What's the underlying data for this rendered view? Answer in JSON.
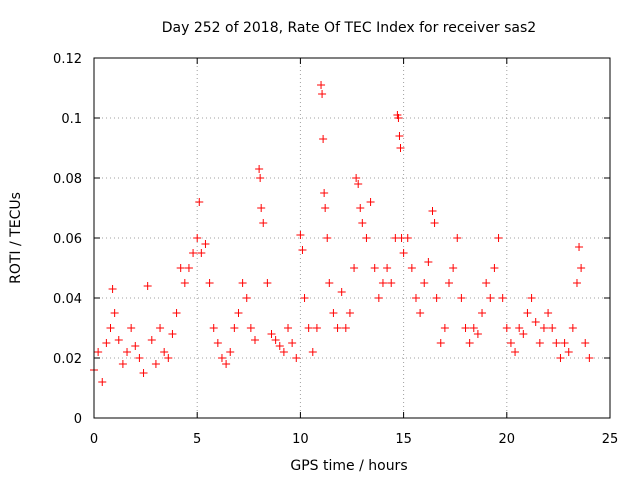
{
  "chart_data": {
    "type": "scatter",
    "title": "Day 252 of 2018, Rate Of TEC Index for receiver sas2",
    "xlabel": "GPS time / hours",
    "ylabel": "ROTI / TECUs",
    "xlim": [
      0,
      25
    ],
    "ylim": [
      0,
      0.12
    ],
    "xticks": [
      0,
      5,
      10,
      15,
      20,
      25
    ],
    "xtick_labels": [
      "0",
      "5",
      "10",
      "15",
      "20",
      "25"
    ],
    "yticks": [
      0,
      0.02,
      0.04,
      0.06,
      0.08,
      0.1,
      0.12
    ],
    "ytick_labels": [
      "0",
      "0.02",
      "0.04",
      "0.06",
      "0.08",
      "0.1",
      "0.12"
    ],
    "grid": true,
    "marker": "plus",
    "color": "#ff0000",
    "series": [
      {
        "points": [
          [
            0.0,
            0.016
          ],
          [
            0.2,
            0.022
          ],
          [
            0.4,
            0.012
          ],
          [
            0.6,
            0.025
          ],
          [
            0.8,
            0.03
          ],
          [
            0.9,
            0.043
          ],
          [
            1.0,
            0.035
          ],
          [
            1.2,
            0.026
          ],
          [
            1.4,
            0.018
          ],
          [
            1.6,
            0.022
          ],
          [
            1.8,
            0.03
          ],
          [
            2.0,
            0.024
          ],
          [
            2.2,
            0.02
          ],
          [
            2.4,
            0.015
          ],
          [
            2.6,
            0.044
          ],
          [
            2.8,
            0.026
          ],
          [
            3.0,
            0.018
          ],
          [
            3.2,
            0.03
          ],
          [
            3.4,
            0.022
          ],
          [
            3.6,
            0.02
          ],
          [
            3.8,
            0.028
          ],
          [
            4.0,
            0.035
          ],
          [
            4.2,
            0.05
          ],
          [
            4.4,
            0.045
          ],
          [
            4.6,
            0.05
          ],
          [
            4.8,
            0.055
          ],
          [
            5.0,
            0.06
          ],
          [
            5.1,
            0.072
          ],
          [
            5.2,
            0.055
          ],
          [
            5.4,
            0.058
          ],
          [
            5.6,
            0.045
          ],
          [
            5.8,
            0.03
          ],
          [
            6.0,
            0.025
          ],
          [
            6.2,
            0.02
          ],
          [
            6.4,
            0.018
          ],
          [
            6.6,
            0.022
          ],
          [
            6.8,
            0.03
          ],
          [
            7.0,
            0.035
          ],
          [
            7.2,
            0.045
          ],
          [
            7.4,
            0.04
          ],
          [
            7.6,
            0.03
          ],
          [
            7.8,
            0.026
          ],
          [
            8.0,
            0.083
          ],
          [
            8.05,
            0.08
          ],
          [
            8.1,
            0.07
          ],
          [
            8.2,
            0.065
          ],
          [
            8.4,
            0.045
          ],
          [
            8.6,
            0.028
          ],
          [
            8.8,
            0.026
          ],
          [
            9.0,
            0.024
          ],
          [
            9.2,
            0.022
          ],
          [
            9.4,
            0.03
          ],
          [
            9.6,
            0.025
          ],
          [
            9.8,
            0.02
          ],
          [
            10.0,
            0.061
          ],
          [
            10.1,
            0.056
          ],
          [
            10.2,
            0.04
          ],
          [
            10.4,
            0.03
          ],
          [
            10.6,
            0.022
          ],
          [
            10.8,
            0.03
          ],
          [
            11.0,
            0.111
          ],
          [
            11.05,
            0.108
          ],
          [
            11.1,
            0.093
          ],
          [
            11.15,
            0.075
          ],
          [
            11.2,
            0.07
          ],
          [
            11.3,
            0.06
          ],
          [
            11.4,
            0.045
          ],
          [
            11.6,
            0.035
          ],
          [
            11.8,
            0.03
          ],
          [
            12.0,
            0.042
          ],
          [
            12.2,
            0.03
          ],
          [
            12.4,
            0.035
          ],
          [
            12.6,
            0.05
          ],
          [
            12.7,
            0.08
          ],
          [
            12.8,
            0.078
          ],
          [
            12.9,
            0.07
          ],
          [
            13.0,
            0.065
          ],
          [
            13.2,
            0.06
          ],
          [
            13.4,
            0.072
          ],
          [
            13.6,
            0.05
          ],
          [
            13.8,
            0.04
          ],
          [
            14.0,
            0.045
          ],
          [
            14.2,
            0.05
          ],
          [
            14.4,
            0.045
          ],
          [
            14.6,
            0.06
          ],
          [
            14.7,
            0.101
          ],
          [
            14.75,
            0.1
          ],
          [
            14.8,
            0.094
          ],
          [
            14.85,
            0.09
          ],
          [
            14.9,
            0.06
          ],
          [
            15.0,
            0.055
          ],
          [
            15.2,
            0.06
          ],
          [
            15.4,
            0.05
          ],
          [
            15.6,
            0.04
          ],
          [
            15.8,
            0.035
          ],
          [
            16.0,
            0.045
          ],
          [
            16.2,
            0.052
          ],
          [
            16.4,
            0.069
          ],
          [
            16.5,
            0.065
          ],
          [
            16.6,
            0.04
          ],
          [
            16.8,
            0.025
          ],
          [
            17.0,
            0.03
          ],
          [
            17.2,
            0.045
          ],
          [
            17.4,
            0.05
          ],
          [
            17.6,
            0.06
          ],
          [
            17.8,
            0.04
          ],
          [
            18.0,
            0.03
          ],
          [
            18.2,
            0.025
          ],
          [
            18.4,
            0.03
          ],
          [
            18.6,
            0.028
          ],
          [
            18.8,
            0.035
          ],
          [
            19.0,
            0.045
          ],
          [
            19.2,
            0.04
          ],
          [
            19.4,
            0.05
          ],
          [
            19.6,
            0.06
          ],
          [
            19.8,
            0.04
          ],
          [
            20.0,
            0.03
          ],
          [
            20.2,
            0.025
          ],
          [
            20.4,
            0.022
          ],
          [
            20.6,
            0.03
          ],
          [
            20.8,
            0.028
          ],
          [
            21.0,
            0.035
          ],
          [
            21.2,
            0.04
          ],
          [
            21.4,
            0.032
          ],
          [
            21.6,
            0.025
          ],
          [
            21.8,
            0.03
          ],
          [
            22.0,
            0.035
          ],
          [
            22.2,
            0.03
          ],
          [
            22.4,
            0.025
          ],
          [
            22.6,
            0.02
          ],
          [
            22.8,
            0.025
          ],
          [
            23.0,
            0.022
          ],
          [
            23.2,
            0.03
          ],
          [
            23.4,
            0.045
          ],
          [
            23.5,
            0.057
          ],
          [
            23.6,
            0.05
          ],
          [
            23.8,
            0.025
          ],
          [
            24.0,
            0.02
          ]
        ]
      }
    ]
  }
}
